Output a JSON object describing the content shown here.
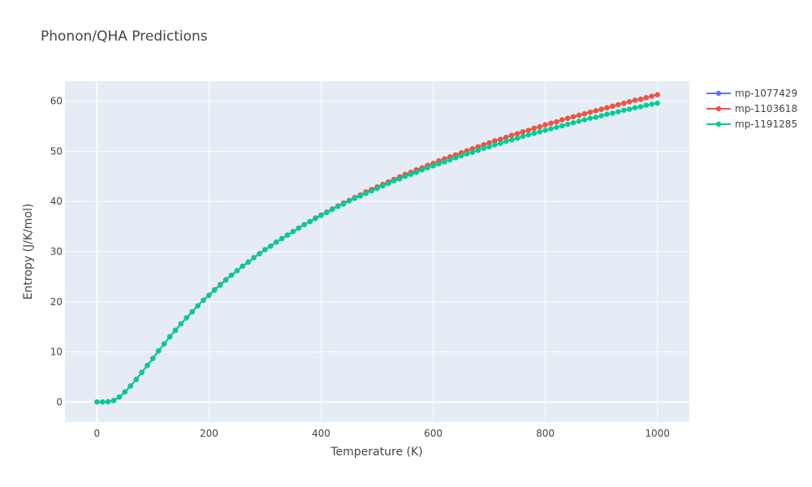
{
  "chart_data": {
    "type": "line",
    "title": "Phonon/QHA Predictions",
    "xlabel": "Temperature (K)",
    "ylabel": "Entropy (J/K/mol)",
    "xlim": [
      -57,
      1057
    ],
    "ylim": [
      -4,
      64
    ],
    "xticks": [
      0,
      200,
      400,
      600,
      800,
      1000
    ],
    "yticks": [
      0,
      10,
      20,
      30,
      40,
      50,
      60
    ],
    "grid": true,
    "legend_position": "top-right",
    "x": [
      0,
      10,
      20,
      30,
      40,
      50,
      60,
      70,
      80,
      90,
      100,
      110,
      120,
      130,
      140,
      150,
      160,
      170,
      180,
      190,
      200,
      210,
      220,
      230,
      240,
      250,
      260,
      270,
      280,
      290,
      300,
      310,
      320,
      330,
      340,
      350,
      360,
      370,
      380,
      390,
      400,
      410,
      420,
      430,
      440,
      450,
      460,
      470,
      480,
      490,
      500,
      510,
      520,
      530,
      540,
      550,
      560,
      570,
      580,
      590,
      600,
      610,
      620,
      630,
      640,
      650,
      660,
      670,
      680,
      690,
      700,
      710,
      720,
      730,
      740,
      750,
      760,
      770,
      780,
      790,
      800,
      810,
      820,
      830,
      840,
      850,
      860,
      870,
      880,
      890,
      900,
      910,
      920,
      930,
      940,
      950,
      960,
      970,
      980,
      990,
      1000
    ],
    "series": [
      {
        "name": "mp-1077429",
        "color": "#636efa",
        "values": [
          0,
          0,
          0.05,
          0.3,
          1.0,
          2.0,
          3.2,
          4.5,
          5.9,
          7.3,
          8.7,
          10.2,
          11.6,
          13.0,
          14.3,
          15.6,
          16.8,
          18.0,
          19.2,
          20.3,
          21.3,
          22.4,
          23.4,
          24.4,
          25.3,
          26.2,
          27.1,
          27.9,
          28.8,
          29.6,
          30.4,
          31.1,
          31.9,
          32.6,
          33.3,
          34.0,
          34.7,
          35.4,
          36.0,
          36.7,
          37.3,
          37.9,
          38.5,
          39.1,
          39.7,
          40.2,
          40.8,
          41.3,
          41.9,
          42.4,
          42.9,
          43.4,
          43.9,
          44.4,
          44.9,
          45.4,
          45.8,
          46.3,
          46.7,
          47.2,
          47.6,
          48.1,
          48.5,
          48.9,
          49.3,
          49.7,
          50.1,
          50.5,
          50.9,
          51.3,
          51.7,
          52.1,
          52.4,
          52.8,
          53.2,
          53.5,
          53.9,
          54.2,
          54.6,
          54.9,
          55.3,
          55.6,
          55.9,
          56.3,
          56.6,
          56.9,
          57.2,
          57.5,
          57.8,
          58.1,
          58.4,
          58.7,
          59.0,
          59.3,
          59.6,
          59.9,
          60.2,
          60.4,
          60.7,
          61.0,
          61.3
        ]
      },
      {
        "name": "mp-1103618",
        "color": "#ef553b",
        "values": [
          0,
          0,
          0.05,
          0.3,
          1.0,
          2.0,
          3.2,
          4.5,
          5.9,
          7.3,
          8.7,
          10.2,
          11.6,
          13.0,
          14.3,
          15.6,
          16.8,
          18.0,
          19.2,
          20.3,
          21.3,
          22.4,
          23.4,
          24.4,
          25.3,
          26.2,
          27.1,
          27.9,
          28.8,
          29.6,
          30.4,
          31.1,
          31.9,
          32.6,
          33.3,
          34.0,
          34.7,
          35.4,
          36.0,
          36.7,
          37.3,
          37.9,
          38.5,
          39.1,
          39.7,
          40.2,
          40.8,
          41.3,
          41.9,
          42.4,
          42.9,
          43.4,
          43.9,
          44.4,
          44.9,
          45.4,
          45.8,
          46.3,
          46.7,
          47.2,
          47.6,
          48.1,
          48.5,
          48.9,
          49.3,
          49.7,
          50.1,
          50.5,
          50.9,
          51.3,
          51.7,
          52.1,
          52.4,
          52.8,
          53.2,
          53.5,
          53.9,
          54.2,
          54.6,
          54.9,
          55.3,
          55.6,
          55.9,
          56.3,
          56.6,
          56.9,
          57.2,
          57.5,
          57.8,
          58.1,
          58.4,
          58.7,
          59.0,
          59.3,
          59.6,
          59.9,
          60.2,
          60.4,
          60.7,
          61.0,
          61.3
        ]
      },
      {
        "name": "mp-1191285",
        "color": "#00cc96",
        "values": [
          0,
          0,
          0.05,
          0.3,
          1.0,
          2.0,
          3.2,
          4.5,
          5.9,
          7.3,
          8.7,
          10.2,
          11.6,
          13.0,
          14.3,
          15.6,
          16.8,
          18.0,
          19.2,
          20.3,
          21.3,
          22.3,
          23.3,
          24.3,
          25.3,
          26.2,
          27.1,
          27.9,
          28.8,
          29.6,
          30.4,
          31.1,
          31.9,
          32.6,
          33.3,
          34.0,
          34.7,
          35.4,
          36.0,
          36.6,
          37.2,
          37.8,
          38.4,
          39.0,
          39.5,
          40.1,
          40.6,
          41.1,
          41.6,
          42.1,
          42.6,
          43.1,
          43.6,
          44.1,
          44.5,
          45.0,
          45.4,
          45.8,
          46.3,
          46.7,
          47.1,
          47.5,
          47.9,
          48.3,
          48.7,
          49.1,
          49.5,
          49.8,
          50.2,
          50.6,
          50.9,
          51.3,
          51.6,
          52.0,
          52.3,
          52.6,
          53.0,
          53.3,
          53.6,
          53.9,
          54.2,
          54.5,
          54.8,
          55.1,
          55.4,
          55.7,
          56.0,
          56.3,
          56.6,
          56.8,
          57.1,
          57.4,
          57.6,
          57.9,
          58.2,
          58.4,
          58.7,
          58.9,
          59.2,
          59.4,
          59.6
        ]
      }
    ]
  }
}
